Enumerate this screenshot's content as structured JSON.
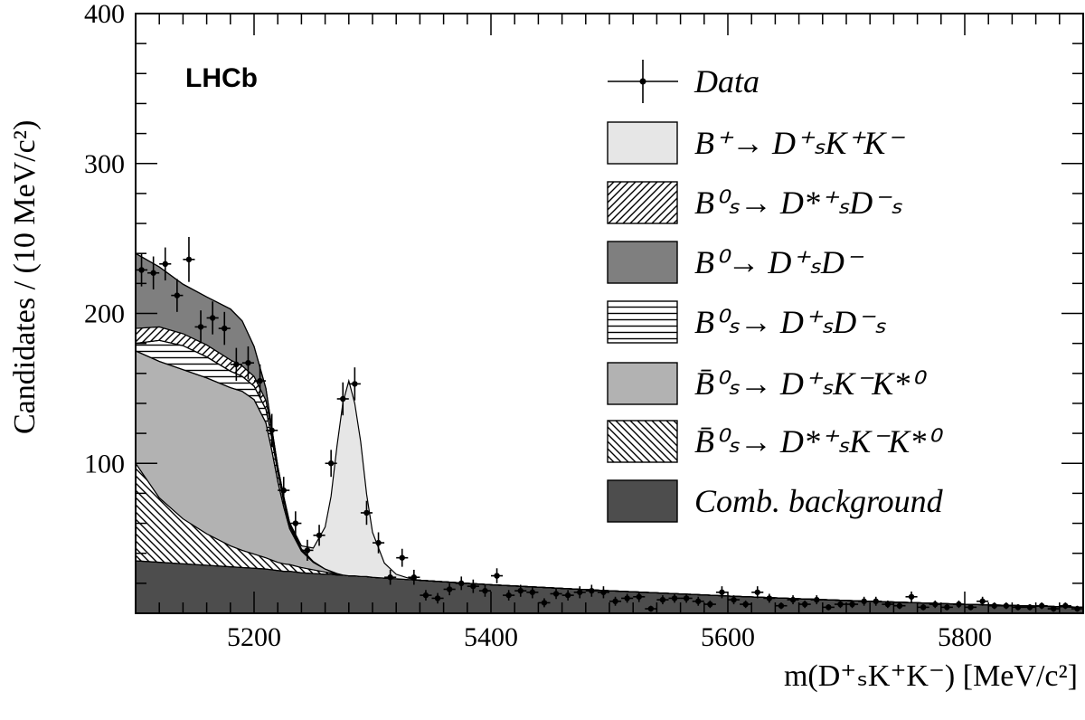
{
  "chart_data": {
    "type": "area",
    "brand_label": "LHCb",
    "ylabel": "Candidates / (10 MeV/c²)",
    "xlabel": "m(D⁺ₛK⁺K⁻) [MeV/c²]",
    "xlim": [
      5100,
      5900
    ],
    "ylim": [
      0,
      400
    ],
    "x_ticks": [
      5200,
      5400,
      5600,
      5800
    ],
    "y_ticks": [
      100,
      200,
      300,
      400
    ],
    "legend_position": "top-right",
    "legend": [
      {
        "label": "Data",
        "style": "points"
      },
      {
        "label": "B⁺→ D⁺ₛK⁺K⁻",
        "style": "fill",
        "color": "#e6e6e6"
      },
      {
        "label": "B⁰ₛ→ D*⁺ₛD⁻ₛ",
        "style": "hatch-diag"
      },
      {
        "label": "B⁰→ D⁺ₛD⁻",
        "style": "fill",
        "color": "#7f7f7f"
      },
      {
        "label": "B⁰ₛ→ D⁺ₛD⁻ₛ",
        "style": "hatch-horiz"
      },
      {
        "label": "B̄⁰ₛ→ D⁺ₛK⁻K*⁰",
        "style": "fill",
        "color": "#b2b2b2"
      },
      {
        "label": "B̄⁰ₛ→ D*⁺ₛK⁻K*⁰",
        "style": "hatch-anti"
      },
      {
        "label": "Comb. background",
        "style": "fill",
        "color": "#4d4d4d"
      }
    ],
    "stack_x": [
      5100,
      5120,
      5140,
      5160,
      5180,
      5190,
      5200,
      5210,
      5215,
      5220,
      5225,
      5230,
      5240,
      5250,
      5260,
      5265,
      5270,
      5275,
      5280,
      5285,
      5290,
      5295,
      5300,
      5310,
      5320,
      5330,
      5340,
      5400,
      5500,
      5600,
      5700,
      5800,
      5900
    ],
    "series": [
      {
        "name": "Comb. background",
        "values": [
          35,
          34,
          33,
          32,
          31,
          30.5,
          30,
          29.5,
          29,
          28.5,
          28,
          28,
          27,
          26.5,
          26,
          26,
          25.5,
          25.5,
          25,
          25,
          24.5,
          24.5,
          24,
          23.5,
          23,
          22.5,
          22,
          19,
          15,
          11.5,
          8.5,
          6,
          4
        ]
      },
      {
        "name": "B̄⁰ₛ→ D*⁺ₛK⁻K*⁰",
        "values": [
          65,
          43,
          30,
          21,
          14,
          11.5,
          9.5,
          7.5,
          6.5,
          5.5,
          5,
          4.5,
          3.5,
          2.5,
          1.5,
          1,
          0.5,
          0,
          0,
          0,
          0,
          0,
          0,
          0,
          0,
          0,
          0,
          0,
          0,
          0,
          0,
          0,
          0
        ]
      },
      {
        "name": "B̄⁰ₛ→ D⁺ₛK⁻K*⁰",
        "values": [
          75,
          91,
          99.5,
          104,
          105.5,
          106,
          103,
          90,
          73,
          54,
          38,
          24,
          11,
          5,
          2,
          1,
          0.5,
          0,
          0,
          0,
          0,
          0,
          0,
          0,
          0,
          0,
          0,
          0,
          0,
          0,
          0,
          0,
          0
        ]
      },
      {
        "name": "B⁰ₛ→ D⁺ₛD⁻ₛ",
        "values": [
          5,
          14,
          16,
          14,
          11,
          10,
          9,
          9,
          8,
          6,
          4,
          2,
          0.5,
          0,
          0,
          0,
          0,
          0,
          0,
          0,
          0,
          0,
          0,
          0,
          0,
          0,
          0,
          0,
          0,
          0,
          0,
          0,
          0
        ]
      },
      {
        "name": "B⁰ₛ→ D*⁺ₛD⁻ₛ",
        "values": [
          10,
          9,
          8,
          8,
          7.5,
          7,
          6.5,
          6,
          5,
          4,
          3,
          2,
          1,
          0.5,
          0,
          0,
          0,
          0,
          0,
          0,
          0,
          0,
          0,
          0,
          0,
          0,
          0,
          0,
          0,
          0,
          0,
          0,
          0
        ]
      },
      {
        "name": "B⁰→ D⁺ₛD⁻",
        "values": [
          50,
          40,
          33,
          32,
          34,
          30,
          20,
          8,
          2,
          0,
          0,
          0,
          0,
          0,
          0,
          0,
          0,
          0,
          0,
          0,
          0,
          0,
          0,
          0,
          0,
          0,
          0,
          0,
          0,
          0,
          0,
          0,
          0
        ]
      },
      {
        "name": "B⁺→ D⁺ₛK⁺K⁻",
        "values": [
          0,
          0,
          0,
          0,
          0,
          0,
          0,
          0,
          0,
          0,
          0,
          0,
          2,
          9,
          28,
          50,
          85,
          115,
          130,
          115,
          90,
          55,
          30,
          10,
          3,
          1,
          0,
          0,
          0,
          0,
          0,
          0,
          0
        ]
      }
    ],
    "data_points": {
      "x": [
        5105,
        5115,
        5125,
        5135,
        5145,
        5155,
        5165,
        5175,
        5185,
        5195,
        5205,
        5215,
        5225,
        5235,
        5245,
        5255,
        5265,
        5275,
        5285,
        5295,
        5305,
        5315,
        5325,
        5335,
        5345,
        5355,
        5365,
        5375,
        5385,
        5395,
        5405,
        5415,
        5425,
        5435,
        5445,
        5455,
        5465,
        5475,
        5485,
        5495,
        5505,
        5515,
        5525,
        5535,
        5545,
        5555,
        5565,
        5575,
        5585,
        5595,
        5605,
        5615,
        5625,
        5635,
        5645,
        5655,
        5665,
        5675,
        5685,
        5695,
        5705,
        5715,
        5725,
        5735,
        5745,
        5755,
        5765,
        5775,
        5785,
        5795,
        5805,
        5815,
        5825,
        5835,
        5845,
        5855,
        5865,
        5875,
        5885,
        5895
      ],
      "y": [
        229,
        227,
        233,
        212,
        236,
        191,
        197,
        190,
        166,
        167,
        155,
        122,
        82,
        60,
        42,
        52,
        100,
        143,
        153,
        67,
        47,
        24,
        37,
        24,
        12,
        10,
        16,
        20,
        18,
        15,
        25,
        12,
        15,
        14,
        7,
        13,
        12,
        14,
        15,
        14,
        8,
        10,
        11,
        3,
        9,
        10,
        10,
        8,
        6,
        14,
        9,
        6,
        14,
        10,
        5,
        9,
        6,
        9,
        4,
        6,
        6,
        8,
        8,
        6,
        5,
        11,
        4,
        6,
        4,
        6,
        4,
        8,
        5,
        5,
        4,
        4,
        5,
        3,
        5,
        3
      ],
      "err": [
        11,
        11,
        11,
        11,
        15,
        11,
        11,
        11,
        11,
        11,
        11,
        11,
        9,
        8,
        7,
        7,
        9,
        11,
        11,
        8,
        7,
        5,
        6,
        5,
        3.5,
        3.5,
        4,
        4.5,
        4.5,
        4,
        5,
        3.5,
        4,
        4,
        3,
        3.5,
        3.5,
        4,
        4,
        4,
        3,
        3,
        3.5,
        2,
        3,
        3,
        3,
        3,
        2.5,
        4,
        3,
        2.5,
        4,
        3,
        2.2,
        3,
        2.5,
        3,
        2,
        2.5,
        2.5,
        3,
        3,
        2.5,
        2.2,
        3.5,
        2,
        2.5,
        2,
        2.5,
        2,
        3,
        2.2,
        2.2,
        2,
        2,
        2.2,
        2,
        2.2,
        2
      ]
    }
  }
}
